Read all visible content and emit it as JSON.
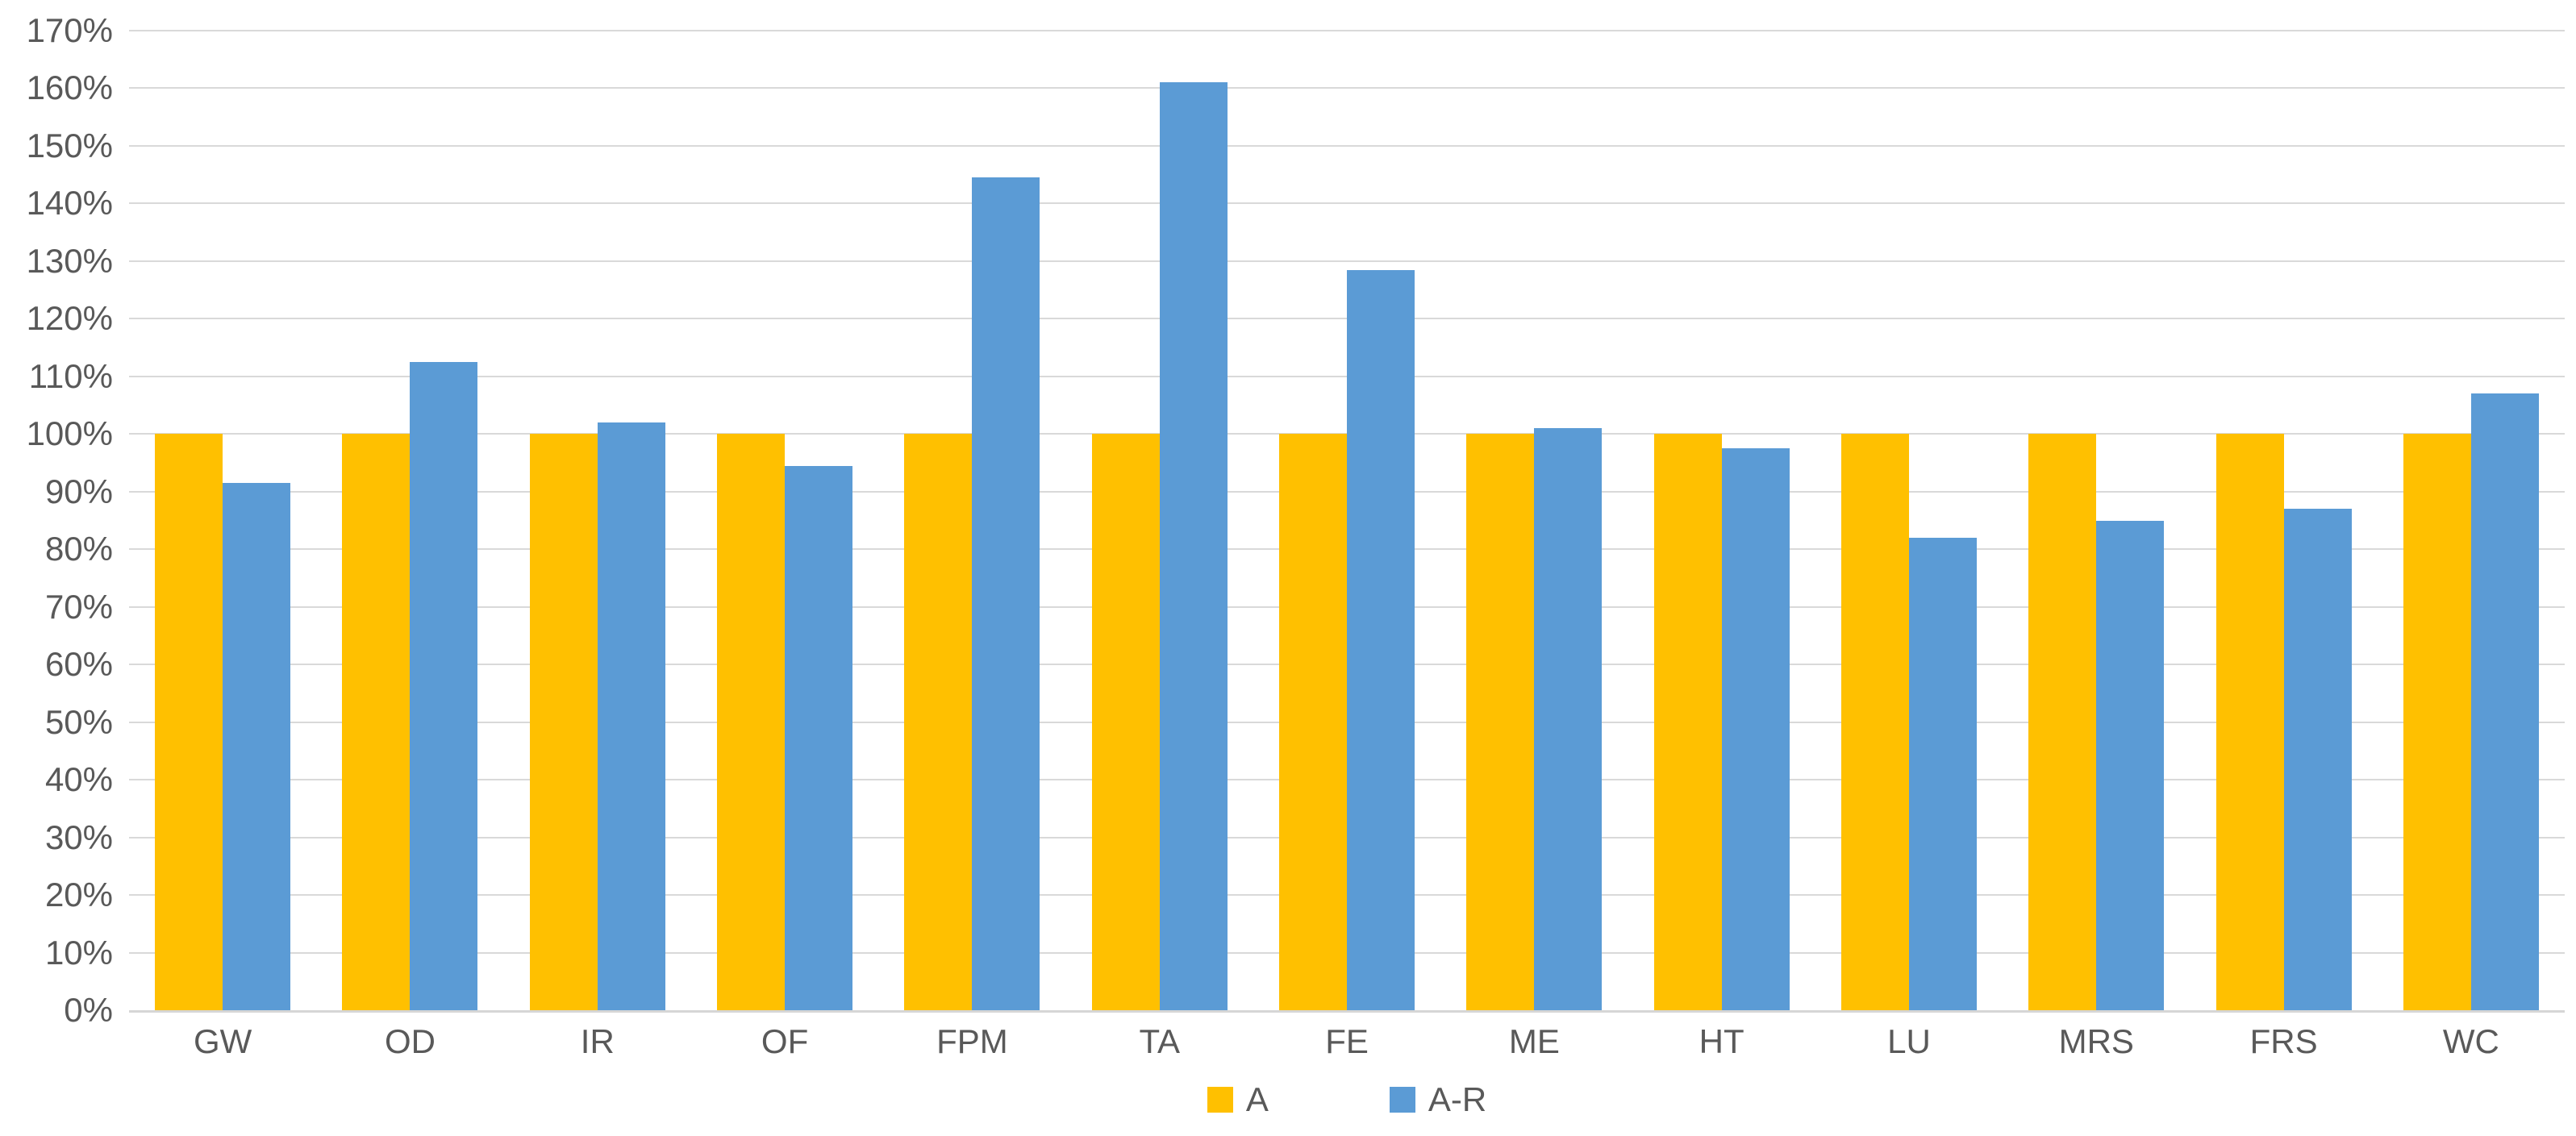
{
  "chart_data": {
    "type": "bar",
    "title": "",
    "xlabel": "",
    "ylabel": "",
    "categories": [
      "GW",
      "OD",
      "IR",
      "OF",
      "FPM",
      "TA",
      "FE",
      "ME",
      "HT",
      "LU",
      "MRS",
      "FRS",
      "WC"
    ],
    "series": [
      {
        "name": "A",
        "color": "#FFC000",
        "values": [
          100,
          100,
          100,
          100,
          100,
          100,
          100,
          100,
          100,
          100,
          100,
          100,
          100
        ]
      },
      {
        "name": "A-R",
        "color": "#5B9BD5",
        "values": [
          91.5,
          112.5,
          102,
          94.5,
          144.5,
          161,
          128.5,
          101,
          97.5,
          82,
          85,
          87,
          107
        ]
      }
    ],
    "ylim": [
      0,
      170
    ],
    "ytick_step": 10,
    "yticks": [
      "0%",
      "10%",
      "20%",
      "30%",
      "40%",
      "50%",
      "60%",
      "70%",
      "80%",
      "90%",
      "100%",
      "110%",
      "120%",
      "130%",
      "140%",
      "150%",
      "160%",
      "170%"
    ],
    "grid": true,
    "legend_position": "bottom-center",
    "colors": {
      "gridline": "#D9D9D9",
      "axis_line": "#D6D6D6",
      "axis_text": "#595959",
      "background": "#FFFFFF"
    }
  }
}
